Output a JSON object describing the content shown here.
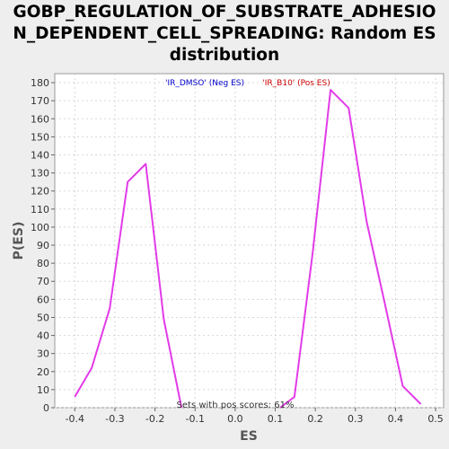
{
  "chart_data": {
    "type": "line",
    "title_lines": [
      "GOBP_REGULATION_OF_SUBSTRATE_ADHESIO",
      "N_DEPENDENT_CELL_SPREADING: Random ES",
      "distribution"
    ],
    "xlabel": "ES",
    "ylabel": "P(ES)",
    "xlim": [
      -0.45,
      0.52
    ],
    "ylim": [
      0,
      185
    ],
    "xticks": [
      -0.4,
      -0.3,
      -0.2,
      -0.1,
      0.0,
      0.1,
      0.2,
      0.3,
      0.4,
      0.5
    ],
    "xtick_labels": [
      "-0.4",
      "-0.3",
      "-0.2",
      "-0.1",
      "0.0",
      "0.1",
      "0.2",
      "0.3",
      "0.4",
      "0.5"
    ],
    "yticks": [
      0,
      10,
      20,
      30,
      40,
      50,
      60,
      70,
      80,
      90,
      100,
      110,
      120,
      130,
      140,
      150,
      160,
      170,
      180
    ],
    "grid": true,
    "legend": {
      "placement": "top-center",
      "entries": [
        {
          "label": "'IR_DMSO' (Neg ES)",
          "color": "#0000cc"
        },
        {
          "label": "'IR_B10' (Pos ES)",
          "color": "#cc0000"
        }
      ]
    },
    "annotation": "Sets with pos scores: 61%",
    "series": [
      {
        "color": "#e23be8",
        "points": [
          [
            -0.4,
            6
          ],
          [
            -0.358,
            22
          ],
          [
            -0.313,
            55
          ],
          [
            -0.268,
            125
          ],
          [
            -0.223,
            135
          ],
          [
            -0.178,
            49
          ],
          [
            -0.134,
            0
          ]
        ]
      },
      {
        "color": "#e23be8",
        "points": [
          [
            0.112,
            0
          ],
          [
            0.148,
            6
          ],
          [
            0.193,
            85
          ],
          [
            0.238,
            176
          ],
          [
            0.283,
            166
          ],
          [
            0.328,
            103
          ],
          [
            0.373,
            58
          ],
          [
            0.418,
            12
          ],
          [
            0.463,
            2
          ]
        ]
      }
    ]
  }
}
